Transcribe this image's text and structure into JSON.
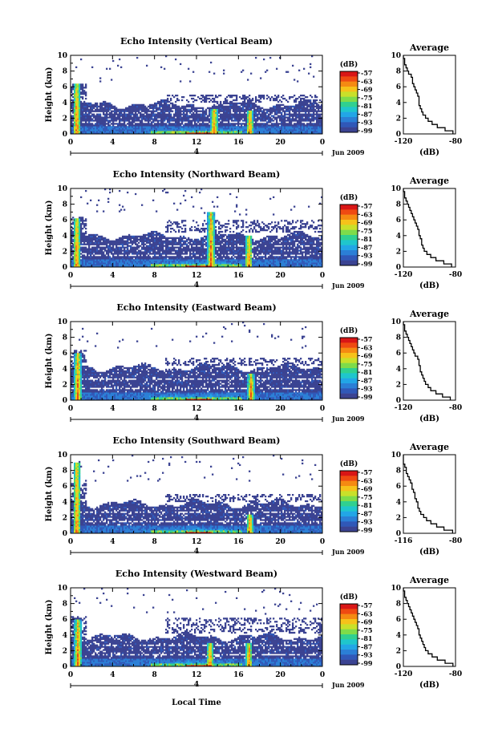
{
  "chart_data": [
    {
      "type": "heatmap",
      "title": "Echo Intensity (Vertical Beam)",
      "ylabel": "Height (km)",
      "ylim": [
        0,
        10
      ],
      "yticks": [
        "0",
        "2",
        "4",
        "6",
        "8",
        "10"
      ],
      "xlim": [
        0,
        24
      ],
      "xticks": [
        "0",
        "4",
        "8",
        "12",
        "16",
        "20",
        "0"
      ],
      "date_tick": "4",
      "date_label": "Jun 2009",
      "colorbar": {
        "unit": "(dB)",
        "ticks": [
          "-57",
          "-63",
          "-69",
          "-75",
          "-81",
          "-87",
          "-93",
          "-99"
        ]
      },
      "profile": {
        "title": "Average",
        "xlabel": "(dB)",
        "xticks": [
          "-120",
          "-80"
        ],
        "xlim": [
          -120,
          -80
        ],
        "ylim": [
          0,
          10
        ],
        "yticks": [
          "0",
          "2",
          "4",
          "6",
          "8",
          "10"
        ],
        "heights": [
          0.2,
          0.6,
          1,
          1.4,
          1.8,
          2.2,
          2.6,
          3,
          3.4,
          3.8,
          4.2,
          4.6,
          5,
          5.4,
          5.8,
          6.2,
          6.6,
          7,
          7.4,
          7.8,
          8.2,
          8.6,
          9,
          9.4,
          9.8
        ],
        "values": [
          -82,
          -88,
          -94,
          -98,
          -101,
          -103,
          -105,
          -106,
          -107,
          -108,
          -108,
          -108,
          -109,
          -110,
          -111,
          -112,
          -113,
          -113,
          -114,
          -116,
          -117,
          -118,
          -119,
          -119,
          -120
        ]
      },
      "features": {
        "base_layer_top": 0.9,
        "echo_top": 3.8,
        "plumes": [
          0.6,
          13.7,
          17.1
        ],
        "plume_tops": [
          6.5,
          3.2,
          3.0
        ],
        "upper_band_km": [
          4.0,
          5.0
        ]
      }
    },
    {
      "type": "heatmap",
      "title": "Echo Intensity (Northward Beam)",
      "ylabel": "Height (km)",
      "ylim": [
        0,
        10
      ],
      "yticks": [
        "0",
        "2",
        "4",
        "6",
        "8",
        "10"
      ],
      "xlim": [
        0,
        24
      ],
      "xticks": [
        "0",
        "4",
        "8",
        "12",
        "16",
        "20",
        "0"
      ],
      "date_tick": "4",
      "date_label": "Jun 2009",
      "colorbar": {
        "unit": "(dB)",
        "ticks": [
          "-57",
          "-63",
          "-69",
          "-75",
          "-81",
          "-87",
          "-93",
          "-99"
        ]
      },
      "profile": {
        "title": "Average",
        "xlabel": "(dB)",
        "xticks": [
          "-120",
          "-80"
        ],
        "xlim": [
          -120,
          -80
        ],
        "ylim": [
          0,
          10
        ],
        "yticks": [
          "0",
          "2",
          "4",
          "6",
          "8",
          "10"
        ],
        "heights": [
          0.2,
          0.6,
          1,
          1.4,
          1.8,
          2.2,
          2.6,
          3,
          3.4,
          3.8,
          4.2,
          4.6,
          5,
          5.4,
          5.8,
          6.2,
          6.6,
          7,
          7.4,
          7.8,
          8.2,
          8.6,
          9,
          9.4,
          9.8
        ],
        "values": [
          -83,
          -89,
          -95,
          -99,
          -102,
          -104,
          -105,
          -106,
          -106,
          -107,
          -108,
          -108,
          -109,
          -110,
          -111,
          -112,
          -113,
          -114,
          -115,
          -116,
          -117,
          -118,
          -119,
          -119,
          -120
        ]
      },
      "features": {
        "base_layer_top": 1.0,
        "echo_top": 4.0,
        "plumes": [
          0.6,
          13.4,
          17.0
        ],
        "plume_tops": [
          6.2,
          7.0,
          4.0
        ],
        "upper_band_km": [
          4.5,
          6.0
        ]
      }
    },
    {
      "type": "heatmap",
      "title": "Echo Intensity (Eastward Beam)",
      "ylabel": "Height (km)",
      "ylim": [
        0,
        10
      ],
      "yticks": [
        "0",
        "2",
        "4",
        "6",
        "8",
        "10"
      ],
      "xlim": [
        0,
        24
      ],
      "xticks": [
        "0",
        "4",
        "8",
        "12",
        "16",
        "20",
        "0"
      ],
      "date_tick": "4",
      "date_label": "Jun 2009",
      "colorbar": {
        "unit": "(dB)",
        "ticks": [
          "-57",
          "-63",
          "-69",
          "-75",
          "-81",
          "-87",
          "-93",
          "-99"
        ]
      },
      "profile": {
        "title": "Average",
        "xlabel": "(dB)",
        "xticks": [
          "-120",
          "-80"
        ],
        "xlim": [
          -120,
          -80
        ],
        "ylim": [
          0,
          10
        ],
        "yticks": [
          "0",
          "2",
          "4",
          "6",
          "8",
          "10"
        ],
        "heights": [
          0.2,
          0.6,
          1,
          1.4,
          1.8,
          2.2,
          2.6,
          3,
          3.4,
          3.8,
          4.2,
          4.6,
          5,
          5.4,
          5.8,
          6.2,
          6.6,
          7,
          7.4,
          7.8,
          8.2,
          8.6,
          9,
          9.4,
          9.8
        ],
        "values": [
          -84,
          -90,
          -95,
          -99,
          -101,
          -103,
          -104,
          -105,
          -106,
          -107,
          -107,
          -108,
          -108,
          -109,
          -111,
          -112,
          -113,
          -114,
          -115,
          -116,
          -117,
          -118,
          -119,
          -119,
          -120
        ]
      },
      "features": {
        "base_layer_top": 1.0,
        "echo_top": 4.2,
        "plumes": [
          0.7,
          17.2
        ],
        "plume_tops": [
          6.0,
          3.5
        ],
        "upper_band_km": [
          4.5,
          5.5
        ]
      }
    },
    {
      "type": "heatmap",
      "title": "Echo Intensity (Southward Beam)",
      "ylabel": "Height (km)",
      "ylim": [
        0,
        10
      ],
      "yticks": [
        "0",
        "2",
        "4",
        "6",
        "8",
        "10"
      ],
      "xlim": [
        0,
        24
      ],
      "xticks": [
        "0",
        "4",
        "8",
        "12",
        "16",
        "20",
        "0"
      ],
      "date_tick": "4",
      "date_label": "Jun 2009",
      "colorbar": {
        "unit": "(dB)",
        "ticks": [
          "-57",
          "-63",
          "-69",
          "-75",
          "-81",
          "-87",
          "-93",
          "-99"
        ]
      },
      "profile": {
        "title": "Average",
        "xlabel": "(dB)",
        "xticks": [
          "-116",
          "-80"
        ],
        "xlim": [
          -116,
          -80
        ],
        "ylim": [
          0,
          10
        ],
        "yticks": [
          "0",
          "2",
          "4",
          "6",
          "8",
          "10"
        ],
        "heights": [
          0.2,
          0.6,
          1,
          1.4,
          1.8,
          2.2,
          2.6,
          3,
          3.4,
          3.8,
          4.2,
          4.6,
          5,
          5.4,
          5.8,
          6.2,
          6.6,
          7,
          7.4,
          7.8,
          8.2,
          8.6,
          9,
          9.4,
          9.8
        ],
        "values": [
          -82,
          -88,
          -93,
          -97,
          -100,
          -102,
          -104,
          -105,
          -106,
          -106,
          -107,
          -108,
          -108,
          -109,
          -110,
          -110,
          -111,
          -112,
          -113,
          -114,
          -114,
          -115,
          -116,
          -116,
          -116
        ]
      },
      "features": {
        "base_layer_top": 0.9,
        "echo_top": 3.8,
        "plumes": [
          0.6,
          17.1
        ],
        "plume_tops": [
          9.0,
          2.5
        ],
        "upper_band_km": [
          4.0,
          5.0
        ]
      }
    },
    {
      "type": "heatmap",
      "title": "Echo Intensity (Westward Beam)",
      "ylabel": "Height (km)",
      "ylim": [
        0,
        10
      ],
      "yticks": [
        "0",
        "2",
        "4",
        "6",
        "8",
        "10"
      ],
      "xlim": [
        0,
        24
      ],
      "xticks": [
        "0",
        "4",
        "8",
        "12",
        "16",
        "20",
        "0"
      ],
      "date_tick": "4",
      "date_label": "Jun 2009",
      "xlabel": "Local Time",
      "colorbar": {
        "unit": "(dB)",
        "ticks": [
          "-57",
          "-63",
          "-69",
          "-75",
          "-81",
          "-87",
          "-93",
          "-99"
        ]
      },
      "profile": {
        "title": "Average",
        "xlabel": "(dB)",
        "xticks": [
          "-120",
          "-80"
        ],
        "xlim": [
          -120,
          -80
        ],
        "ylim": [
          0,
          10
        ],
        "yticks": [
          "0",
          "2",
          "4",
          "6",
          "8",
          "10"
        ],
        "heights": [
          0.2,
          0.6,
          1,
          1.4,
          1.8,
          2.2,
          2.6,
          3,
          3.4,
          3.8,
          4.2,
          4.6,
          5,
          5.4,
          5.8,
          6.2,
          6.6,
          7,
          7.4,
          7.8,
          8.2,
          8.6,
          9,
          9.4,
          9.8
        ],
        "values": [
          -82,
          -88,
          -94,
          -98,
          -101,
          -103,
          -104,
          -105,
          -106,
          -107,
          -108,
          -108,
          -109,
          -110,
          -111,
          -112,
          -113,
          -114,
          -115,
          -116,
          -117,
          -118,
          -119,
          -119,
          -120
        ]
      },
      "features": {
        "base_layer_top": 1.0,
        "echo_top": 3.8,
        "plumes": [
          0.7,
          13.3,
          17.0
        ],
        "plume_tops": [
          6.0,
          3.0,
          3.0
        ],
        "upper_band_km": [
          4.2,
          6.2
        ]
      }
    }
  ],
  "palette": [
    "#3b4392",
    "#3058b8",
    "#2b7fd6",
    "#22a6e6",
    "#1fc6cc",
    "#30d090",
    "#7edc4a",
    "#c9e02a",
    "#f6c21a",
    "#f58a12",
    "#ef4a12",
    "#d91616"
  ]
}
